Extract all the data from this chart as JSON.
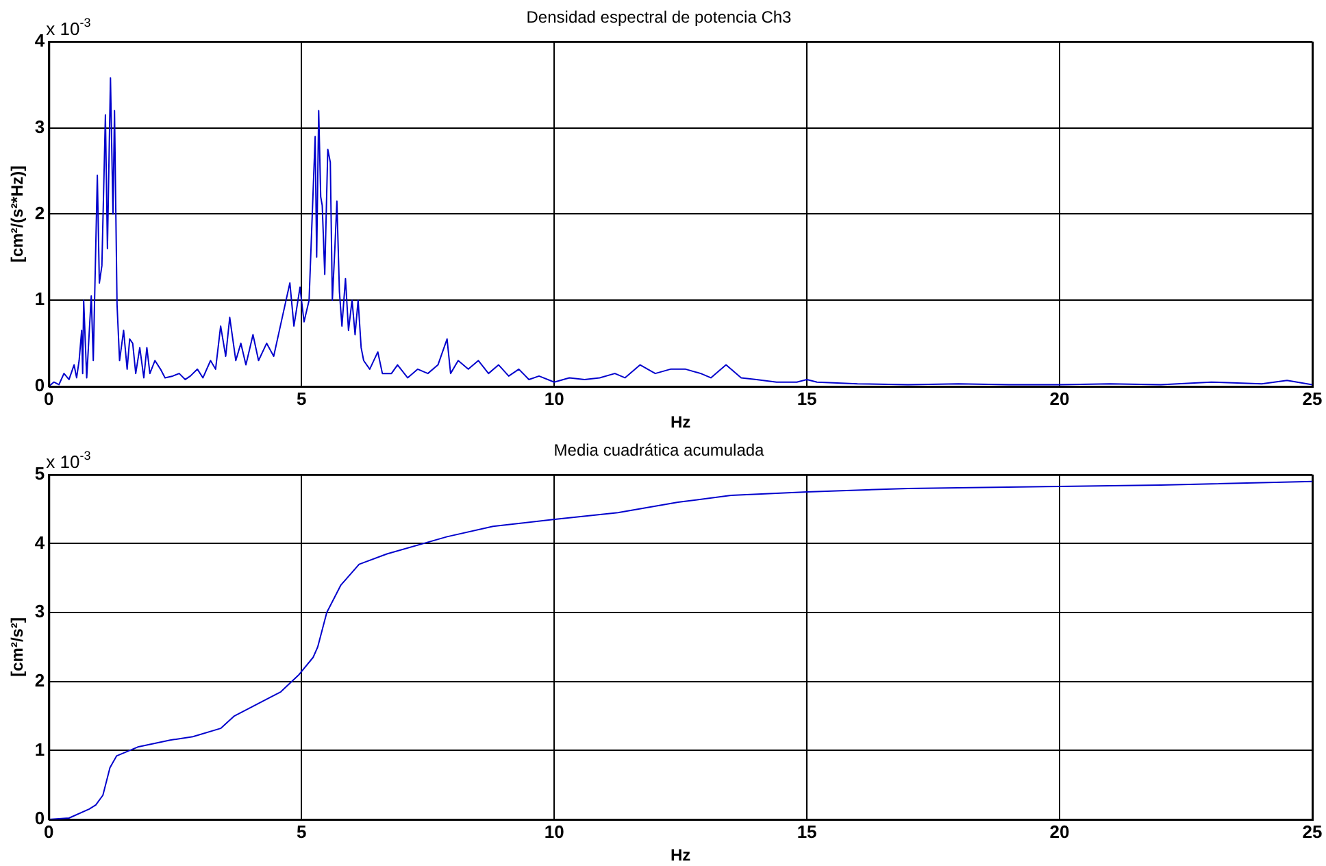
{
  "chart_data": [
    {
      "type": "line",
      "title": "Densidad espectral de potencia Ch3",
      "xlabel": "Hz",
      "ylabel": "[cm²/(s²*Hz)]",
      "annotations": [
        "x 10$^{-3}$"
      ],
      "grid": true,
      "marker": "none",
      "xlim": [
        0,
        25
      ],
      "xticks": [
        0,
        5,
        10,
        15,
        20,
        25
      ],
      "ylim": [
        0,
        4
      ],
      "yticks": [
        0,
        1,
        2,
        3,
        4
      ],
      "x": [
        0,
        0.1,
        0.2,
        0.3,
        0.4,
        0.5,
        0.55,
        0.6,
        0.65,
        0.67,
        0.69,
        0.75,
        0.84,
        0.88,
        0.96,
        1.0,
        1.05,
        1.12,
        1.16,
        1.22,
        1.27,
        1.3,
        1.35,
        1.4,
        1.48,
        1.55,
        1.6,
        1.66,
        1.72,
        1.8,
        1.88,
        1.94,
        2.0,
        2.1,
        2.21,
        2.3,
        2.45,
        2.58,
        2.7,
        2.8,
        2.94,
        3.05,
        3.2,
        3.3,
        3.4,
        3.5,
        3.58,
        3.7,
        3.8,
        3.9,
        4.04,
        4.15,
        4.31,
        4.45,
        4.6,
        4.77,
        4.85,
        4.97,
        5.05,
        5.15,
        5.27,
        5.3,
        5.34,
        5.38,
        5.41,
        5.46,
        5.52,
        5.57,
        5.61,
        5.66,
        5.7,
        5.75,
        5.8,
        5.87,
        5.93,
        6.0,
        6.06,
        6.12,
        6.18,
        6.23,
        6.35,
        6.51,
        6.6,
        6.78,
        6.9,
        7.1,
        7.3,
        7.5,
        7.7,
        7.88,
        7.95,
        8.1,
        8.3,
        8.5,
        8.7,
        8.9,
        9.1,
        9.3,
        9.5,
        9.7,
        10.0,
        10.3,
        10.6,
        10.9,
        11.2,
        11.4,
        11.7,
        12.0,
        12.3,
        12.6,
        12.9,
        13.1,
        13.4,
        13.7,
        14.0,
        14.4,
        14.8,
        15.0,
        15.2,
        15.6,
        16.0,
        17.0,
        18.0,
        19.0,
        20.0,
        21.0,
        22.0,
        23.0,
        24.0,
        24.5,
        25
      ],
      "series": [
        {
          "color": "#0000cc",
          "values": [
            0,
            0.05,
            0.02,
            0.15,
            0.08,
            0.25,
            0.1,
            0.3,
            0.65,
            0.15,
            1.0,
            0.1,
            1.05,
            0.3,
            2.45,
            1.2,
            1.4,
            3.15,
            1.6,
            3.58,
            2.0,
            3.2,
            0.95,
            0.3,
            0.65,
            0.2,
            0.55,
            0.5,
            0.15,
            0.45,
            0.1,
            0.45,
            0.15,
            0.3,
            0.2,
            0.1,
            0.12,
            0.15,
            0.08,
            0.12,
            0.2,
            0.1,
            0.3,
            0.2,
            0.7,
            0.35,
            0.8,
            0.3,
            0.5,
            0.25,
            0.6,
            0.3,
            0.5,
            0.35,
            0.75,
            1.2,
            0.7,
            1.15,
            0.75,
            1.0,
            2.9,
            1.5,
            3.2,
            2.2,
            2.1,
            1.3,
            2.75,
            2.6,
            1.0,
            1.6,
            2.15,
            1.1,
            0.7,
            1.25,
            0.65,
            1.0,
            0.6,
            1.0,
            0.45,
            0.3,
            0.2,
            0.4,
            0.15,
            0.15,
            0.25,
            0.1,
            0.2,
            0.15,
            0.25,
            0.55,
            0.15,
            0.3,
            0.2,
            0.3,
            0.15,
            0.25,
            0.12,
            0.2,
            0.08,
            0.12,
            0.05,
            0.1,
            0.08,
            0.1,
            0.15,
            0.1,
            0.25,
            0.15,
            0.2,
            0.2,
            0.15,
            0.1,
            0.25,
            0.1,
            0.08,
            0.05,
            0.05,
            0.08,
            0.05,
            0.04,
            0.03,
            0.02,
            0.03,
            0.02,
            0.02,
            0.03,
            0.02,
            0.05,
            0.03,
            0.07,
            0.02
          ]
        }
      ]
    },
    {
      "type": "line",
      "title": "Media cuadrática acumulada",
      "xlabel": "Hz",
      "ylabel": "[cm²/s²]",
      "annotations": [
        "x 10$^{-3}$"
      ],
      "grid": true,
      "marker": "none",
      "xlim": [
        0,
        25
      ],
      "xticks": [
        0,
        5,
        10,
        15,
        20,
        25
      ],
      "ylim": [
        0,
        5
      ],
      "yticks": [
        0,
        1,
        2,
        3,
        4,
        5
      ],
      "x": [
        0,
        0.4,
        0.8,
        0.93,
        1.07,
        1.21,
        1.34,
        1.76,
        2.4,
        2.85,
        3.4,
        3.67,
        4.59,
        4.95,
        5.23,
        5.32,
        5.5,
        5.78,
        6.14,
        6.69,
        7.88,
        8.79,
        9.98,
        11.26,
        12.45,
        13.5,
        15,
        17,
        20,
        22,
        25
      ],
      "series": [
        {
          "color": "#0000cc",
          "values": [
            0,
            0.02,
            0.15,
            0.21,
            0.35,
            0.75,
            0.92,
            1.05,
            1.15,
            1.2,
            1.32,
            1.5,
            1.85,
            2.1,
            2.35,
            2.5,
            3.0,
            3.4,
            3.7,
            3.85,
            4.1,
            4.25,
            4.35,
            4.45,
            4.6,
            4.7,
            4.75,
            4.8,
            4.83,
            4.85,
            4.9
          ]
        }
      ]
    }
  ]
}
